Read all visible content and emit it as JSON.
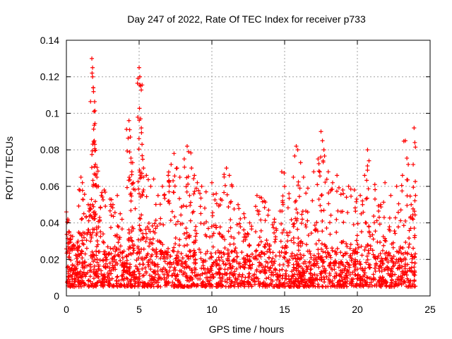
{
  "chart_data": {
    "type": "scatter",
    "title": "Day 247 of 2022, Rate Of TEC Index for receiver p733",
    "xlabel": "GPS time / hours",
    "ylabel": "ROTI / TECUs",
    "xlim": [
      0,
      25
    ],
    "ylim": [
      0,
      0.14
    ],
    "xticks": [
      0,
      5,
      10,
      15,
      20,
      25
    ],
    "xtick_labels": [
      "0",
      "5",
      "10",
      "15",
      "20",
      "25"
    ],
    "yticks": [
      0,
      0.02,
      0.04,
      0.06,
      0.08,
      0.1,
      0.12,
      0.14
    ],
    "ytick_labels": [
      "0",
      "0.02",
      "0.04",
      "0.06",
      "0.08",
      "0.1",
      "0.12",
      "0.14"
    ],
    "grid": true,
    "marker": "plus",
    "color": "#ff0000",
    "x_range_of_data": [
      0,
      24
    ],
    "baseline_band": [
      0.005,
      0.025
    ],
    "series": [
      {
        "name": "",
        "points": [
          [
            0.0,
            0.046
          ],
          [
            0.1,
            0.042
          ],
          [
            0.2,
            0.035
          ],
          [
            0.3,
            0.033
          ],
          [
            0.5,
            0.028
          ],
          [
            0.8,
            0.03
          ],
          [
            1.0,
            0.065
          ],
          [
            1.1,
            0.062
          ],
          [
            1.2,
            0.045
          ],
          [
            1.5,
            0.05
          ],
          [
            1.6,
            0.048
          ],
          [
            1.75,
            0.13
          ],
          [
            1.8,
            0.125
          ],
          [
            1.8,
            0.12
          ],
          [
            1.85,
            0.114
          ],
          [
            1.9,
            0.101
          ],
          [
            1.9,
            0.084
          ],
          [
            1.95,
            0.083
          ],
          [
            2.0,
            0.072
          ],
          [
            2.1,
            0.065
          ],
          [
            2.2,
            0.06
          ],
          [
            2.4,
            0.055
          ],
          [
            2.6,
            0.058
          ],
          [
            3.0,
            0.053
          ],
          [
            3.2,
            0.05
          ],
          [
            3.5,
            0.055
          ],
          [
            3.7,
            0.045
          ],
          [
            4.3,
            0.096
          ],
          [
            4.35,
            0.091
          ],
          [
            4.4,
            0.087
          ],
          [
            4.45,
            0.073
          ],
          [
            4.5,
            0.068
          ],
          [
            4.6,
            0.062
          ],
          [
            5.0,
            0.125
          ],
          [
            5.05,
            0.12
          ],
          [
            5.1,
            0.115
          ],
          [
            5.1,
            0.097
          ],
          [
            5.15,
            0.092
          ],
          [
            5.2,
            0.083
          ],
          [
            5.3,
            0.07
          ],
          [
            5.5,
            0.066
          ],
          [
            5.8,
            0.06
          ],
          [
            6.0,
            0.064
          ],
          [
            6.3,
            0.055
          ],
          [
            6.6,
            0.06
          ],
          [
            7.0,
            0.066
          ],
          [
            7.2,
            0.072
          ],
          [
            7.4,
            0.078
          ],
          [
            7.6,
            0.07
          ],
          [
            7.8,
            0.065
          ],
          [
            8.1,
            0.075
          ],
          [
            8.3,
            0.082
          ],
          [
            8.4,
            0.079
          ],
          [
            8.6,
            0.07
          ],
          [
            8.8,
            0.066
          ],
          [
            9.0,
            0.062
          ],
          [
            9.3,
            0.06
          ],
          [
            9.6,
            0.057
          ],
          [
            10.0,
            0.062
          ],
          [
            10.3,
            0.056
          ],
          [
            10.6,
            0.053
          ],
          [
            11.0,
            0.07
          ],
          [
            11.2,
            0.066
          ],
          [
            11.4,
            0.06
          ],
          [
            11.8,
            0.05
          ],
          [
            12.2,
            0.045
          ],
          [
            12.6,
            0.04
          ],
          [
            13.1,
            0.055
          ],
          [
            13.3,
            0.054
          ],
          [
            13.6,
            0.052
          ],
          [
            13.9,
            0.047
          ],
          [
            14.3,
            0.042
          ],
          [
            14.8,
            0.068
          ],
          [
            15.0,
            0.06
          ],
          [
            15.3,
            0.056
          ],
          [
            15.6,
            0.065
          ],
          [
            15.8,
            0.082
          ],
          [
            15.9,
            0.08
          ],
          [
            16.1,
            0.073
          ],
          [
            16.3,
            0.065
          ],
          [
            16.6,
            0.059
          ],
          [
            17.0,
            0.068
          ],
          [
            17.3,
            0.075
          ],
          [
            17.5,
            0.09
          ],
          [
            17.6,
            0.085
          ],
          [
            17.7,
            0.08
          ],
          [
            18.0,
            0.068
          ],
          [
            18.3,
            0.062
          ],
          [
            18.6,
            0.066
          ],
          [
            19.0,
            0.058
          ],
          [
            19.4,
            0.06
          ],
          [
            19.8,
            0.058
          ],
          [
            20.2,
            0.055
          ],
          [
            20.5,
            0.066
          ],
          [
            20.7,
            0.08
          ],
          [
            20.8,
            0.074
          ],
          [
            21.2,
            0.061
          ],
          [
            21.6,
            0.05
          ],
          [
            21.9,
            0.062
          ],
          [
            22.3,
            0.055
          ],
          [
            22.7,
            0.06
          ],
          [
            23.1,
            0.066
          ],
          [
            23.3,
            0.085
          ],
          [
            23.5,
            0.072
          ],
          [
            23.7,
            0.05
          ],
          [
            23.9,
            0.092
          ],
          [
            23.95,
            0.084
          ],
          [
            24.0,
            0.055
          ]
        ]
      }
    ]
  }
}
